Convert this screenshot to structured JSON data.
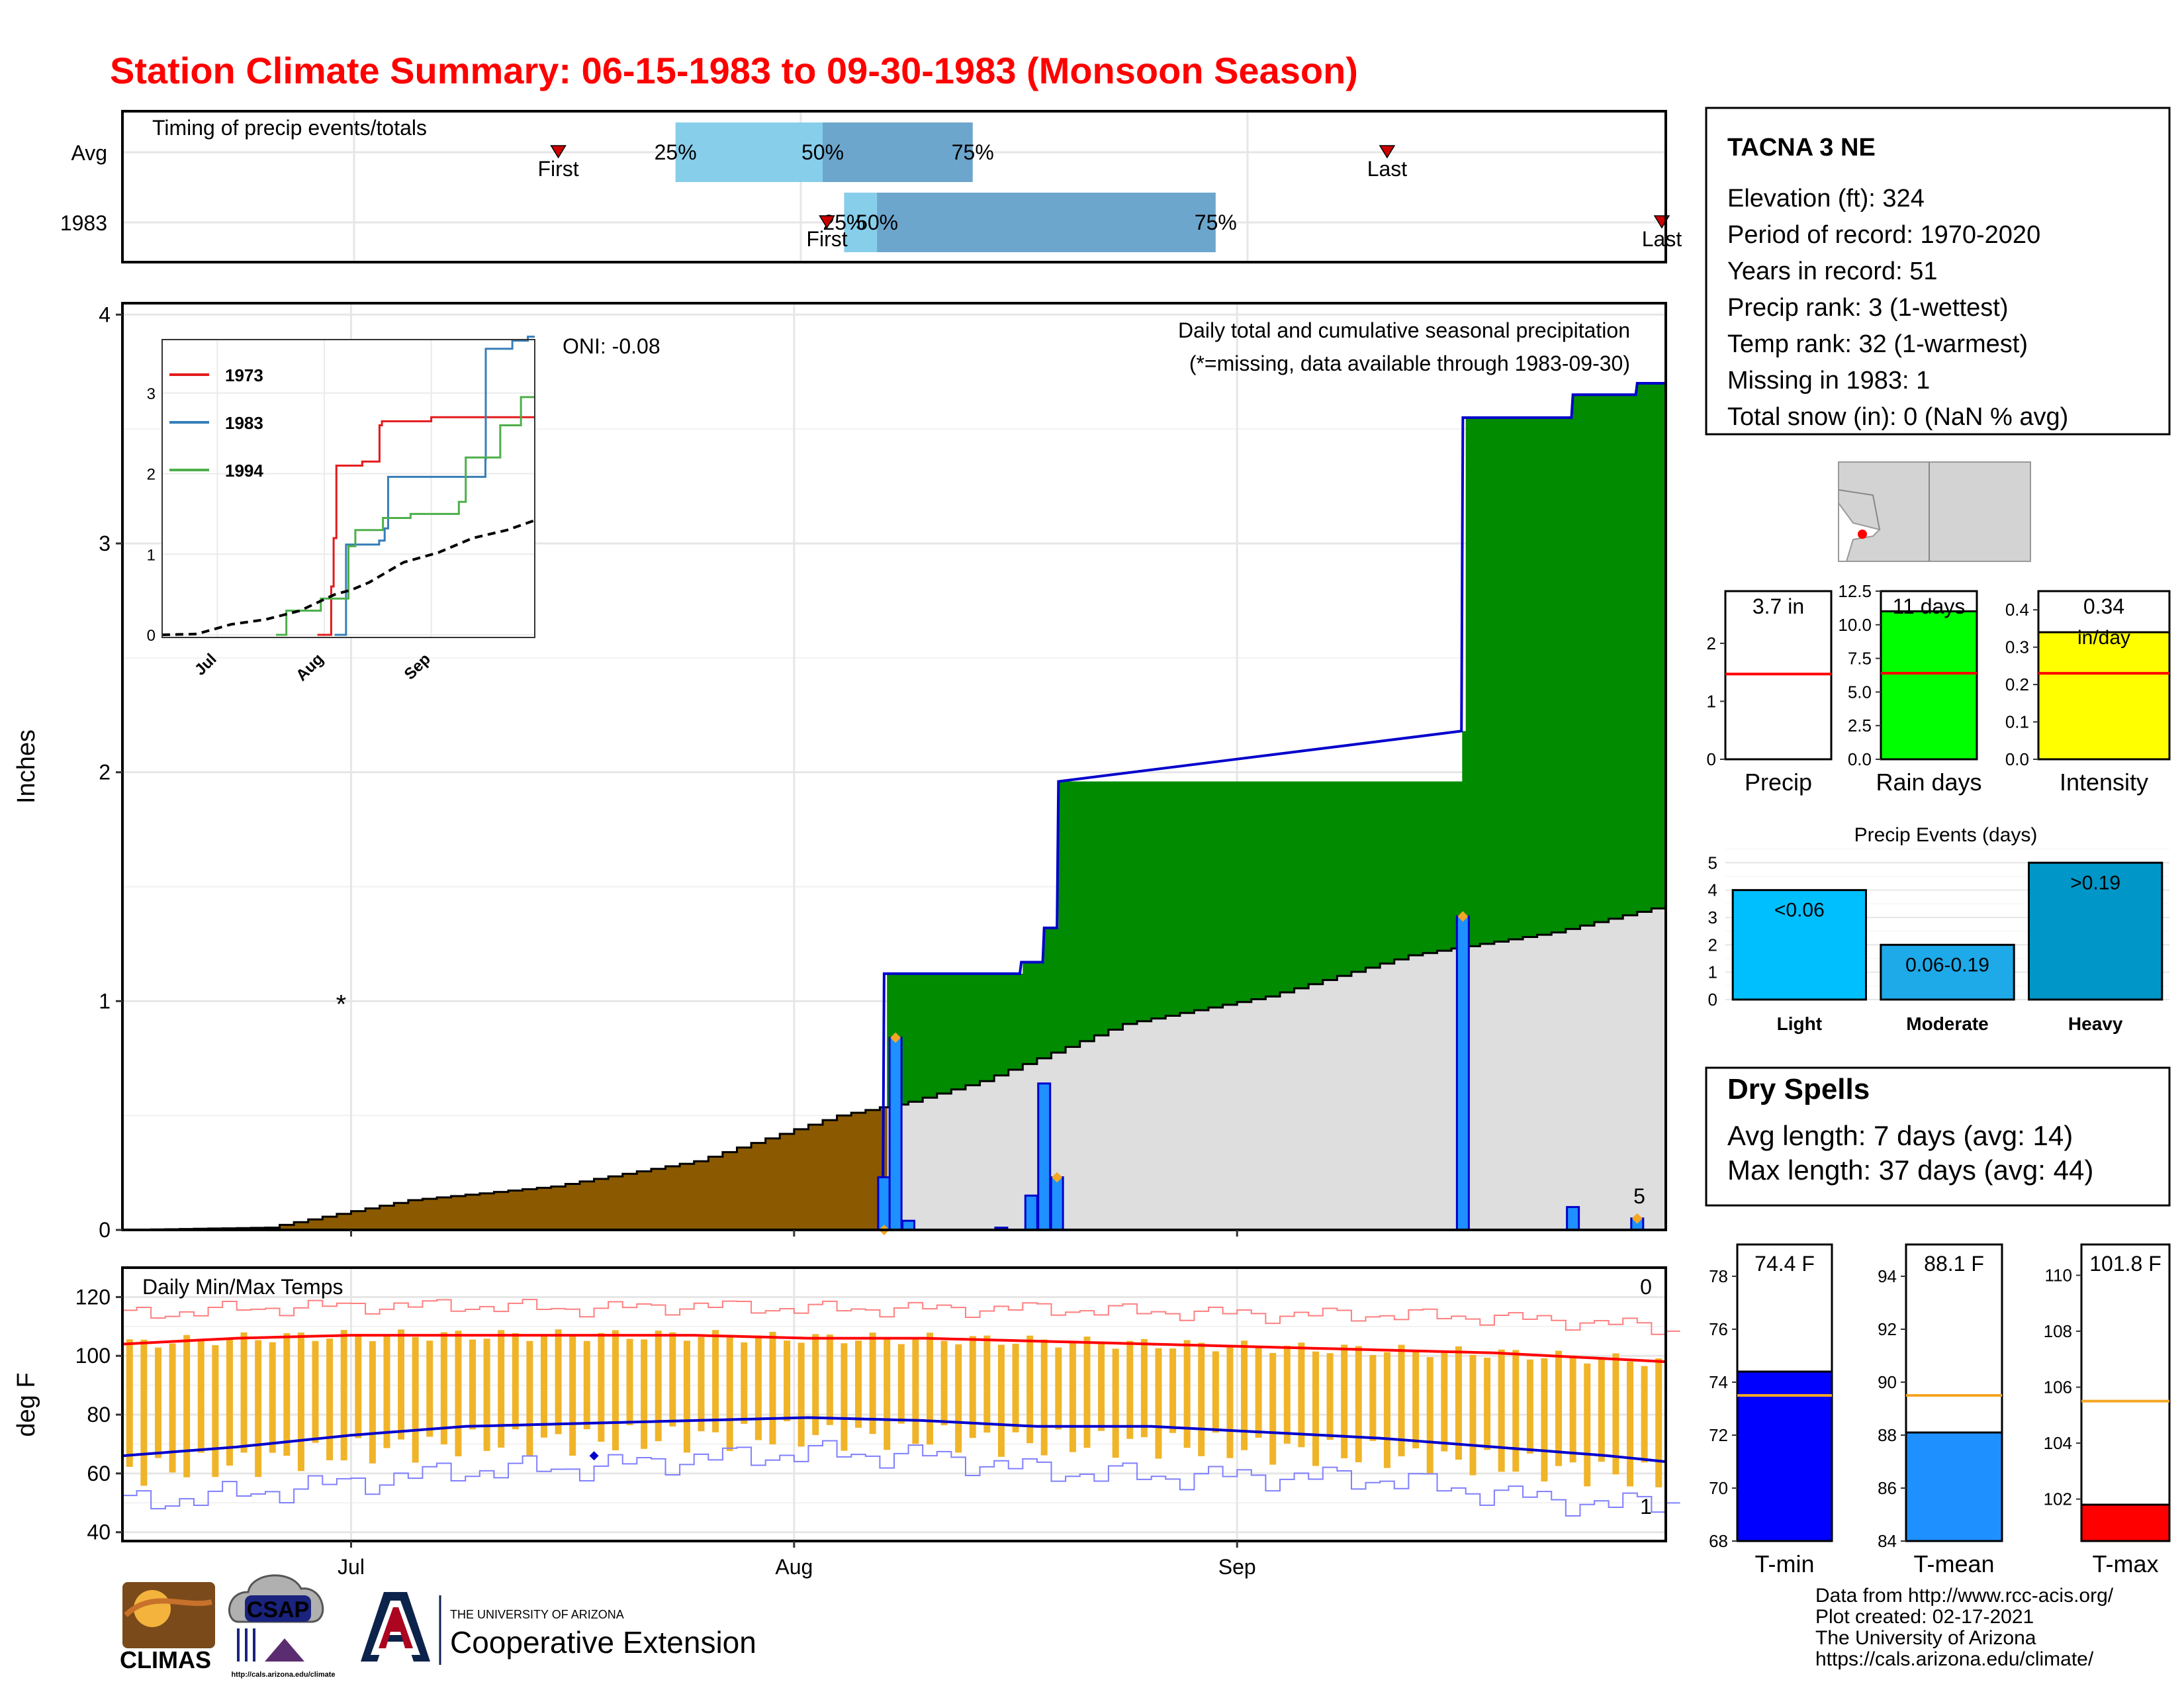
{
  "title": "Station Climate Summary: 06-15-1983 to 09-30-1983 (Monsoon Season)",
  "timing_panel": {
    "label": "Timing of precip events/totals",
    "rows": [
      {
        "name": "Avg",
        "first": 30.5,
        "last": 88.5,
        "p25": 38.7,
        "p50": 49.0,
        "p75": 59.5,
        "labels": {
          "first": "First",
          "last": "Last",
          "p25": "25%",
          "p50": "50%",
          "p75": "75%"
        }
      },
      {
        "name": "1983",
        "first": 49.3,
        "last": 108.0,
        "p25": 50.5,
        "p50": 52.8,
        "p75": 76.5,
        "labels": {
          "first": "First",
          "last": "Last",
          "p25": "25%",
          "p50": "50%",
          "p75": "75%"
        }
      }
    ]
  },
  "station_box": {
    "name": "TACNA 3 NE",
    "lines": [
      "Elevation (ft): 324",
      "Period of record: 1970-2020",
      "Years in record: 51",
      "Precip rank: 3 (1-wettest)",
      "Temp rank: 32 (1-warmest)",
      "Missing in 1983: 1",
      "Total snow (in): 0 (NaN % avg)"
    ]
  },
  "precip_panel": {
    "ylabel": "Inches",
    "caption": "Daily total and cumulative seasonal precipitation",
    "missing_note": "(*=missing, data available through 1983-09-30)",
    "oni": "ONI: -0.08",
    "yticks": [
      "0",
      "1",
      "2",
      "3",
      "4"
    ],
    "xticks": [
      "Jul",
      "Aug",
      "Sep"
    ],
    "extreme_count": "5"
  },
  "inset": {
    "legend": [
      "1973",
      "1983",
      "1994"
    ],
    "yticks": [
      "0",
      "1",
      "2",
      "3"
    ],
    "xticks": [
      "Jul",
      "Aug",
      "Sep"
    ]
  },
  "temp_panel": {
    "ylabel": "deg F",
    "label": "Daily Min/Max Temps",
    "yticks": [
      "40",
      "60",
      "80",
      "100",
      "120"
    ],
    "xticks": [
      "Jul",
      "Aug",
      "Sep"
    ],
    "max_record_count": "0",
    "min_record_count": "1"
  },
  "mini_bars": [
    {
      "name": "Precip",
      "value_label": "3.7 in",
      "yticks": [
        "0",
        "1",
        "2"
      ]
    },
    {
      "name": "Rain days",
      "value_label": "11 days",
      "yticks": [
        "0.0",
        "2.5",
        "5.0",
        "7.5",
        "10.0",
        "12.5"
      ]
    },
    {
      "name": "Intensity",
      "value_label": "0.34",
      "unit": "in/day",
      "yticks": [
        "0.0",
        "0.1",
        "0.2",
        "0.3",
        "0.4"
      ]
    }
  ],
  "precip_events": {
    "title": "Precip Events (days)",
    "categories": [
      "Light",
      "Moderate",
      "Heavy"
    ],
    "labels": [
      "<0.06",
      "0.06-0.19",
      ">0.19"
    ],
    "values": [
      4,
      2,
      5
    ],
    "yticks": [
      "0",
      "1",
      "2",
      "3",
      "4",
      "5"
    ]
  },
  "dry_spells": {
    "title": "Dry Spells",
    "avg": "Avg length: 7 days (avg: 14)",
    "max": "Max length: 37 days (avg: 44)"
  },
  "temp_bars": [
    {
      "name": "T-min",
      "value_label": "74.4 F",
      "yticks": [
        "68",
        "70",
        "72",
        "74",
        "76",
        "78"
      ]
    },
    {
      "name": "T-mean",
      "value_label": "88.1 F",
      "yticks": [
        "84",
        "86",
        "88",
        "90",
        "92",
        "94"
      ]
    },
    {
      "name": "T-max",
      "value_label": "101.8 F",
      "yticks": [
        "102",
        "104",
        "106",
        "108",
        "110"
      ]
    }
  ],
  "footer": {
    "lines": [
      "Data from http://www.rcc-acis.org/",
      "Plot created: 02-17-2021",
      "The University of Arizona",
      "https://cals.arizona.edu/climate/"
    ],
    "logos": {
      "climas": "CLIMAS",
      "csap": "CSAP",
      "csap_url": "http://cals.arizona.edu/climate",
      "ua_top": "THE UNIVERSITY OF ARIZONA",
      "ua_bottom": "Cooperative Extension"
    }
  },
  "colors": {
    "brown": "#8b5a00",
    "green": "#008b00",
    "grey_area": "#dedede",
    "bar_blue": "#1e90ff",
    "bar_outline": "#0000ee",
    "orange": "#f5a623",
    "red": "#ff0000",
    "light_blue": "#87ceeb",
    "mid_blue": "#6ca6cd"
  },
  "chart_data": [
    {
      "type": "area",
      "title": "Daily total and cumulative seasonal precipitation",
      "ylabel": "Inches",
      "ylim": [
        0,
        4.05
      ],
      "x_range_days": [
        0,
        108
      ],
      "x_origin": "1983-06-15",
      "series": [
        {
          "name": "1983",
          "x": [
            0,
            53.2,
            53.3,
            62.8,
            62.9,
            64.4,
            64.5,
            65.4,
            65.5,
            93.7,
            93.8,
            101.4,
            101.5,
            105.9,
            106.0,
            108
          ],
          "values": [
            0,
            0,
            1.12,
            1.12,
            1.17,
            1.17,
            1.32,
            1.32,
            1.96,
            2.18,
            3.55,
            3.55,
            3.65,
            3.65,
            3.7,
            3.7
          ]
        }
      ],
      "avg_x": [
        0,
        10,
        20,
        30,
        40,
        50,
        55,
        60,
        70,
        80,
        90,
        100,
        108
      ],
      "avg_values": [
        0,
        0.01,
        0.13,
        0.19,
        0.3,
        0.5,
        0.56,
        0.65,
        0.9,
        1.02,
        1.2,
        1.3,
        1.42
      ],
      "daily_bars": [
        {
          "day": 53.3,
          "value": 0.23
        },
        {
          "day": 54.1,
          "value": 0.84
        },
        {
          "day": 55.0,
          "value": 0.04
        },
        {
          "day": 61.5,
          "value": 0.01
        },
        {
          "day": 63.6,
          "value": 0.15
        },
        {
          "day": 64.5,
          "value": 0.64
        },
        {
          "day": 65.4,
          "value": 0.23
        },
        {
          "day": 93.8,
          "value": 1.37
        },
        {
          "day": 101.5,
          "value": 0.1
        },
        {
          "day": 106.0,
          "value": 0.05
        }
      ],
      "missing_days": [
        {
          "day": 15.3,
          "value": 1.0
        }
      ]
    },
    {
      "type": "line",
      "title": "Daily Min/Max Temps",
      "ylabel": "deg F",
      "ylim": [
        37,
        130
      ],
      "x": [
        0,
        8,
        16,
        24,
        32,
        40,
        48,
        56,
        64,
        72,
        80,
        88,
        96,
        104,
        108
      ],
      "series": [
        {
          "name": "avg max",
          "values": [
            104,
            106,
            107,
            107,
            107,
            107,
            106,
            106,
            105,
            104,
            103,
            102,
            101,
            99,
            98
          ]
        },
        {
          "name": "avg min",
          "values": [
            66,
            69,
            73,
            76,
            77,
            78,
            79,
            78,
            76,
            76,
            74,
            72,
            69,
            66,
            64
          ]
        },
        {
          "name": "record max",
          "values": [
            114,
            116,
            117,
            117,
            116,
            117,
            116,
            116,
            116,
            115,
            114,
            114,
            113,
            111,
            109
          ]
        },
        {
          "name": "record min",
          "values": [
            50,
            53,
            57,
            61,
            62,
            65,
            67,
            66,
            61,
            59,
            59,
            58,
            53,
            49,
            51
          ]
        }
      ]
    },
    {
      "type": "bar",
      "title": "Precip Events (days)",
      "categories": [
        "Light",
        "Moderate",
        "Heavy"
      ],
      "values": [
        4,
        2,
        5
      ],
      "ylim": [
        0,
        5.2
      ]
    },
    {
      "type": "bar",
      "categories": [
        "Precip",
        "Rain days",
        "Intensity",
        "T-min",
        "T-mean",
        "T-max"
      ],
      "values": [
        3.7,
        11,
        0.34,
        74.4,
        88.1,
        101.8
      ],
      "averages": [
        1.47,
        6.4,
        0.23,
        73.5,
        89.5,
        105.5
      ]
    }
  ]
}
